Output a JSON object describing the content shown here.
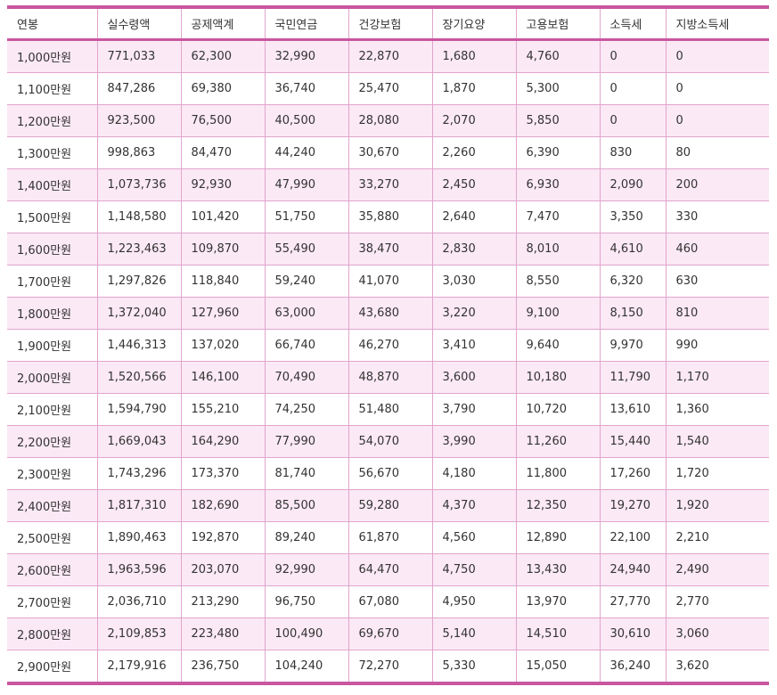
{
  "table": {
    "headers": [
      "연봉",
      "실수령액",
      "공제액계",
      "국민연금",
      "건강보험",
      "장기요양",
      "고용보험",
      "소득세",
      "지방소득세"
    ],
    "rows": [
      [
        "1,000만원",
        "771,033",
        "62,300",
        "32,990",
        "22,870",
        "1,680",
        "4,760",
        "0",
        "0"
      ],
      [
        "1,100만원",
        "847,286",
        "69,380",
        "36,740",
        "25,470",
        "1,870",
        "5,300",
        "0",
        "0"
      ],
      [
        "1,200만원",
        "923,500",
        "76,500",
        "40,500",
        "28,080",
        "2,070",
        "5,850",
        "0",
        "0"
      ],
      [
        "1,300만원",
        "998,863",
        "84,470",
        "44,240",
        "30,670",
        "2,260",
        "6,390",
        "830",
        "80"
      ],
      [
        "1,400만원",
        "1,073,736",
        "92,930",
        "47,990",
        "33,270",
        "2,450",
        "6,930",
        "2,090",
        "200"
      ],
      [
        "1,500만원",
        "1,148,580",
        "101,420",
        "51,750",
        "35,880",
        "2,640",
        "7,470",
        "3,350",
        "330"
      ],
      [
        "1,600만원",
        "1,223,463",
        "109,870",
        "55,490",
        "38,470",
        "2,830",
        "8,010",
        "4,610",
        "460"
      ],
      [
        "1,700만원",
        "1,297,826",
        "118,840",
        "59,240",
        "41,070",
        "3,030",
        "8,550",
        "6,320",
        "630"
      ],
      [
        "1,800만원",
        "1,372,040",
        "127,960",
        "63,000",
        "43,680",
        "3,220",
        "9,100",
        "8,150",
        "810"
      ],
      [
        "1,900만원",
        "1,446,313",
        "137,020",
        "66,740",
        "46,270",
        "3,410",
        "9,640",
        "9,970",
        "990"
      ],
      [
        "2,000만원",
        "1,520,566",
        "146,100",
        "70,490",
        "48,870",
        "3,600",
        "10,180",
        "11,790",
        "1,170"
      ],
      [
        "2,100만원",
        "1,594,790",
        "155,210",
        "74,250",
        "51,480",
        "3,790",
        "10,720",
        "13,610",
        "1,360"
      ],
      [
        "2,200만원",
        "1,669,043",
        "164,290",
        "77,990",
        "54,070",
        "3,990",
        "11,260",
        "15,440",
        "1,540"
      ],
      [
        "2,300만원",
        "1,743,296",
        "173,370",
        "81,740",
        "56,670",
        "4,180",
        "11,800",
        "17,260",
        "1,720"
      ],
      [
        "2,400만원",
        "1,817,310",
        "182,690",
        "85,500",
        "59,280",
        "4,370",
        "12,350",
        "19,270",
        "1,920"
      ],
      [
        "2,500만원",
        "1,890,463",
        "192,870",
        "89,240",
        "61,870",
        "4,560",
        "12,890",
        "22,100",
        "2,210"
      ],
      [
        "2,600만원",
        "1,963,596",
        "203,070",
        "92,990",
        "64,470",
        "4,750",
        "13,430",
        "24,940",
        "2,490"
      ],
      [
        "2,700만원",
        "2,036,710",
        "213,290",
        "96,750",
        "67,080",
        "4,950",
        "13,970",
        "27,770",
        "2,770"
      ],
      [
        "2,800만원",
        "2,109,853",
        "223,480",
        "100,490",
        "69,670",
        "5,140",
        "14,510",
        "30,610",
        "3,060"
      ],
      [
        "2,900만원",
        "2,179,916",
        "236,750",
        "104,240",
        "72,270",
        "5,330",
        "15,050",
        "36,240",
        "3,620"
      ]
    ]
  },
  "colors": {
    "accent": "#c9569f",
    "row_shade": "#fbe9f5",
    "divider": "#e1a5cc"
  }
}
